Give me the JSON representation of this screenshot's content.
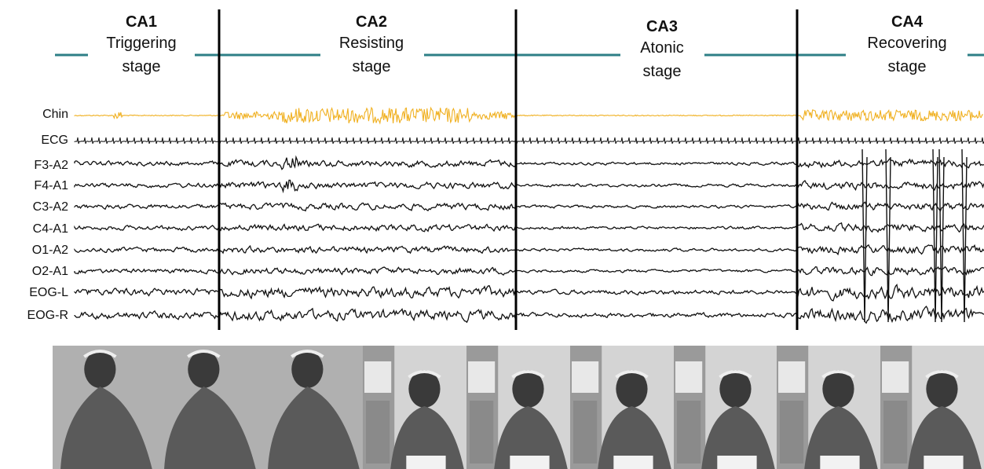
{
  "stages": [
    {
      "code": "CA1",
      "name_line1": "Triggering",
      "name_line2": "stage"
    },
    {
      "code": "CA2",
      "name_line1": "Resisting",
      "name_line2": "stage"
    },
    {
      "code": "CA3",
      "name_line1": "Atonic",
      "name_line2": "stage"
    },
    {
      "code": "CA4",
      "name_line1": "Recovering",
      "name_line2": "stage"
    }
  ],
  "channels": [
    "Chin",
    "ECG",
    "F3-A2",
    "F4-A1",
    "C3-A2",
    "C4-A1",
    "O1-A2",
    "O2-A1",
    "EOG-L",
    "EOG-R"
  ],
  "colors": {
    "stage_line": "#2e7f86",
    "chin_trace": "#f0b020",
    "trace": "#111111",
    "divider": "#000000"
  },
  "photo_count": 9
}
